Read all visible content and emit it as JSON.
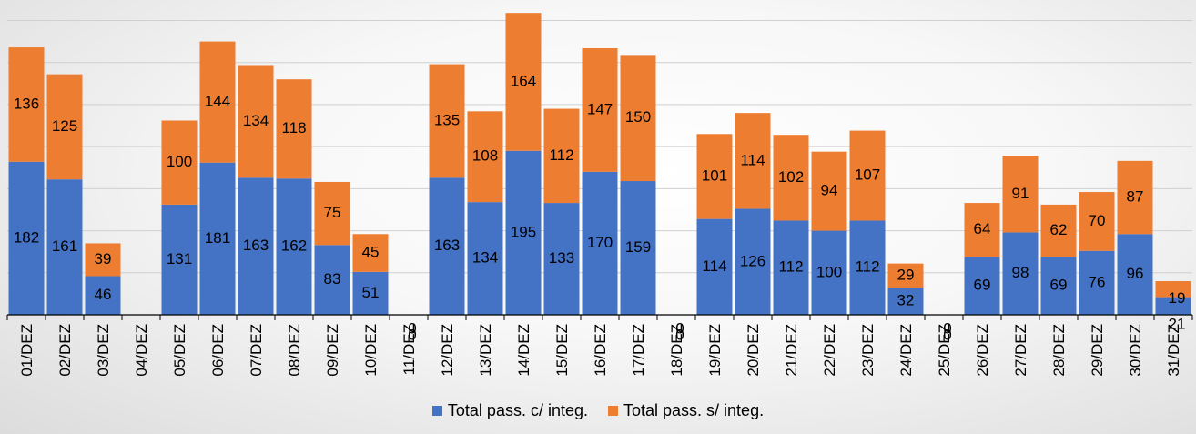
{
  "chart_data": {
    "type": "bar",
    "stacked": true,
    "categories": [
      "01/DEZ",
      "02/DEZ",
      "03/DEZ",
      "04/DEZ",
      "05/DEZ",
      "06/DEZ",
      "07/DEZ",
      "08/DEZ",
      "09/DEZ",
      "10/DEZ",
      "11/DEZ",
      "12/DEZ",
      "13/DEZ",
      "14/DEZ",
      "15/DEZ",
      "16/DEZ",
      "17/DEZ",
      "18/DEZ",
      "19/DEZ",
      "20/DEZ",
      "21/DEZ",
      "22/DEZ",
      "23/DEZ",
      "24/DEZ",
      "25/DEZ",
      "26/DEZ",
      "27/DEZ",
      "28/DEZ",
      "29/DEZ",
      "30/DEZ",
      "31/DEZ"
    ],
    "series": [
      {
        "name": "Total pass. c/ integ.",
        "color": "#4472C4",
        "values": [
          182,
          161,
          46,
          0,
          131,
          181,
          163,
          162,
          83,
          51,
          0,
          163,
          134,
          195,
          133,
          170,
          159,
          0,
          114,
          126,
          112,
          100,
          112,
          32,
          0,
          69,
          98,
          69,
          76,
          96,
          21
        ],
        "labels": [
          "182",
          "161",
          "46",
          "",
          "131",
          "181",
          "163",
          "162",
          "83",
          "51",
          "0",
          "163",
          "134",
          "195",
          "133",
          "170",
          "159",
          "0",
          "114",
          "126",
          "112",
          "100",
          "112",
          "32",
          "0",
          "69",
          "98",
          "69",
          "76",
          "96",
          "21"
        ]
      },
      {
        "name": "Total pass. s/ integ.",
        "color": "#ED7D31",
        "values": [
          136,
          125,
          39,
          0,
          100,
          144,
          134,
          118,
          75,
          45,
          0,
          135,
          108,
          164,
          112,
          147,
          150,
          0,
          101,
          114,
          102,
          94,
          107,
          29,
          0,
          64,
          91,
          62,
          70,
          87,
          19
        ],
        "labels": [
          "136",
          "125",
          "39",
          "",
          "100",
          "144",
          "134",
          "118",
          "75",
          "45",
          "0",
          "135",
          "108",
          "164",
          "112",
          "147",
          "150",
          "0",
          "101",
          "114",
          "102",
          "94",
          "107",
          "29",
          "0",
          "64",
          "91",
          "62",
          "70",
          "87",
          "19"
        ]
      }
    ],
    "ylim": [
      0,
      370
    ],
    "grid": true,
    "legend_position": "bottom"
  }
}
